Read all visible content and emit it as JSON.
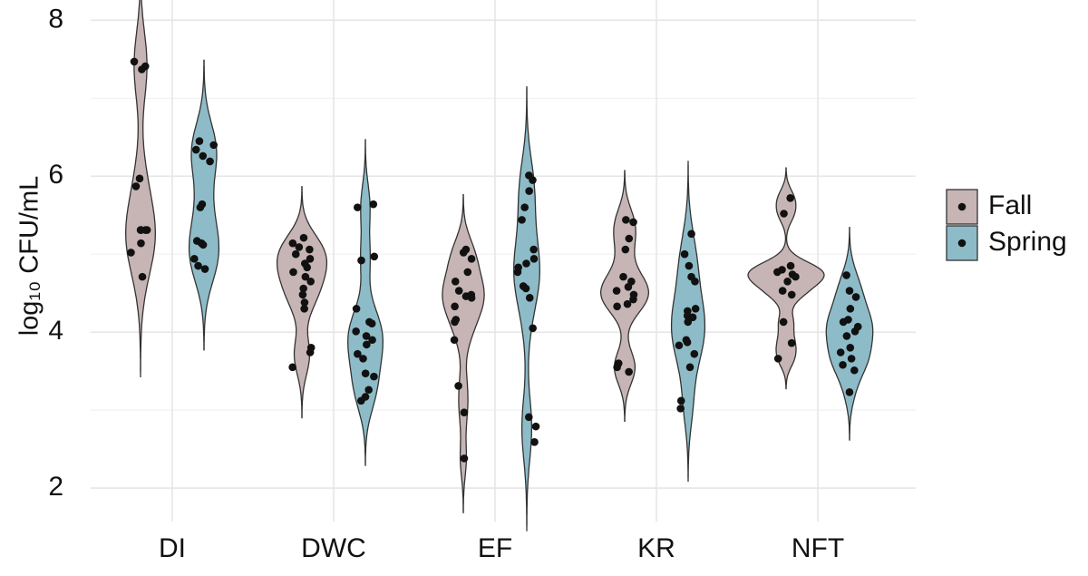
{
  "chart_data": {
    "type": "violin",
    "y_label": "log₁₀ CFU/mL",
    "categories": [
      "DI",
      "DWC",
      "EF",
      "KR",
      "NFT"
    ],
    "ylim": [
      1.57,
      8.26
    ],
    "yticks": [
      2,
      4,
      6,
      8
    ],
    "grid": true,
    "legend": "right",
    "series": [
      {
        "name": "Fall",
        "color": "#c7b5b5",
        "values": [
          [
            7.47,
            7.41,
            7.37,
            5.97,
            5.87,
            5.31,
            5.31,
            5.31,
            5.31,
            5.14,
            5.02,
            4.71
          ],
          [
            5.21,
            5.14,
            5.09,
            5.06,
            5.0,
            4.94,
            4.88,
            4.83,
            4.77,
            4.71,
            4.65,
            4.56,
            4.48,
            4.38,
            4.3,
            3.8,
            3.74,
            3.55
          ],
          [
            5.06,
            5.02,
            4.94,
            4.77,
            4.65,
            4.53,
            4.48,
            4.46,
            4.44,
            4.33,
            4.16,
            4.13,
            3.9,
            3.31,
            2.97,
            2.38
          ],
          [
            5.44,
            5.41,
            5.2,
            5.06,
            4.71,
            4.65,
            4.58,
            4.53,
            4.48,
            4.42,
            4.36,
            4.33,
            3.6,
            3.55,
            3.49
          ],
          [
            5.72,
            5.52,
            4.85,
            4.8,
            4.77,
            4.74,
            4.71,
            4.65,
            4.53,
            4.48,
            4.13,
            3.86,
            3.66
          ]
        ]
      },
      {
        "name": "Spring",
        "color": "#8dbcc8",
        "values": [
          [
            6.45,
            6.4,
            6.34,
            6.26,
            6.19,
            5.64,
            5.6,
            5.17,
            5.14,
            5.12,
            4.94,
            4.85,
            4.81
          ],
          [
            5.64,
            5.6,
            4.97,
            4.92,
            4.3,
            4.13,
            4.11,
            4.01,
            3.95,
            3.9,
            3.84,
            3.72,
            3.66,
            3.47,
            3.43,
            3.26,
            3.17,
            3.12
          ],
          [
            6.01,
            5.95,
            5.81,
            5.6,
            5.44,
            5.06,
            4.94,
            4.88,
            4.83,
            4.77,
            4.59,
            4.56,
            4.44,
            4.05,
            2.91,
            2.79,
            2.59
          ],
          [
            5.26,
            5.0,
            4.85,
            4.71,
            4.65,
            4.3,
            4.27,
            4.21,
            4.19,
            4.13,
            3.9,
            3.87,
            3.83,
            3.72,
            3.55,
            3.12,
            3.02
          ],
          [
            4.73,
            4.53,
            4.45,
            4.3,
            4.16,
            4.13,
            4.07,
            4.01,
            3.95,
            3.8,
            3.74,
            3.66,
            3.58,
            3.51,
            3.23
          ]
        ]
      }
    ]
  }
}
